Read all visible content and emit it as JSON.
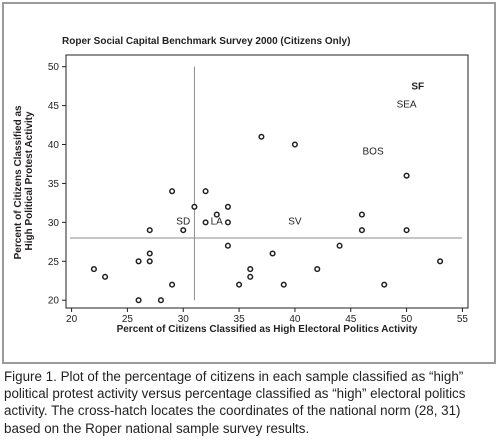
{
  "chart_data": {
    "type": "scatter",
    "title": "Roper Social Capital Benchmark Survey 2000 (Citizens Only)",
    "xlabel": "Percent of Citizens Classified as High Electoral Politics Activity",
    "ylabel": "Percent of Citizens Classified as High Political Protest Activity",
    "xlim": [
      19.5,
      55.5
    ],
    "ylim": [
      19,
      51.5
    ],
    "xticks": [
      20,
      25,
      30,
      35,
      40,
      45,
      50,
      55
    ],
    "yticks": [
      20,
      25,
      30,
      35,
      40,
      45,
      50
    ],
    "grid": false,
    "reference_lines": {
      "x": 31,
      "y": 28
    },
    "points": [
      [
        22,
        24
      ],
      [
        23,
        23
      ],
      [
        26,
        25
      ],
      [
        26,
        20
      ],
      [
        27,
        29
      ],
      [
        27,
        26
      ],
      [
        27,
        25
      ],
      [
        28,
        20
      ],
      [
        29,
        34
      ],
      [
        29,
        22
      ],
      [
        30,
        29
      ],
      [
        31,
        32
      ],
      [
        32,
        34
      ],
      [
        32,
        30
      ],
      [
        33,
        31
      ],
      [
        34,
        32
      ],
      [
        34,
        30
      ],
      [
        34,
        27
      ],
      [
        35,
        22
      ],
      [
        36,
        24
      ],
      [
        36,
        23
      ],
      [
        37,
        41
      ],
      [
        38,
        26
      ],
      [
        39,
        22
      ],
      [
        40,
        40
      ],
      [
        42,
        24
      ],
      [
        44,
        27
      ],
      [
        46,
        31
      ],
      [
        46,
        29
      ],
      [
        48,
        22
      ],
      [
        50,
        36
      ],
      [
        50,
        29
      ],
      [
        53,
        25
      ]
    ],
    "labels": [
      {
        "text": "SF",
        "x": 51.0,
        "y": 47.5,
        "bold": true
      },
      {
        "text": "SEA",
        "x": 50.0,
        "y": 45.2,
        "bold": false
      },
      {
        "text": "BOS",
        "x": 47.0,
        "y": 39.2,
        "bold": false
      },
      {
        "text": "SD",
        "x": 30.0,
        "y": 30.2,
        "bold": false
      },
      {
        "text": "LA",
        "x": 33.0,
        "y": 30.2,
        "bold": false
      },
      {
        "text": "SV",
        "x": 40.0,
        "y": 30.2,
        "bold": false
      }
    ]
  },
  "caption": "Figure 1. Plot of the percentage of citizens in each sample classified as “high” political protest activity versus percentage classified as “high” electoral politics activity. The cross-hatch locates the coordinates of the national norm (28, 31) based on the Roper national sample survey results.",
  "colors": {
    "ink": "#231f20",
    "frame": "#9a9a9a",
    "refline": "#8c8c8c"
  }
}
